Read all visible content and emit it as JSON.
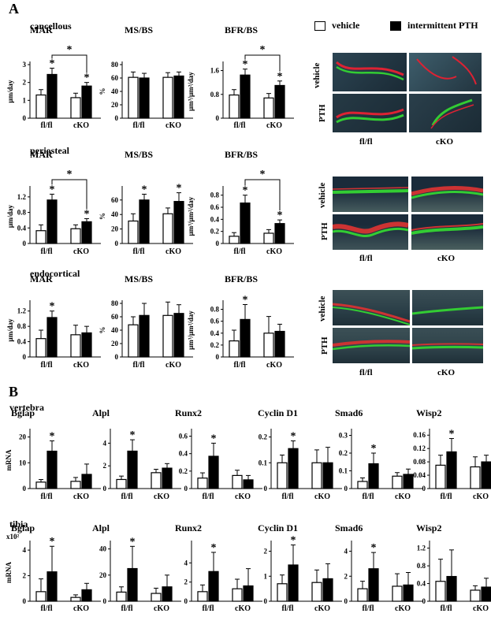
{
  "panel_a_label": "A",
  "panel_b_label": "B",
  "legend": {
    "vehicle": "vehicle",
    "pth": "intermittent PTH"
  },
  "regions": {
    "cancellous": "cancellous",
    "periosteal": "periosteal",
    "endocortical": "endocortical",
    "vertebra": "vertebra",
    "tibia": "tibia"
  },
  "micrographs": {
    "row_vehicle": "vehicle",
    "row_pth": "PTH",
    "col_flfl": "fl/fl",
    "col_cko": "cKO"
  },
  "colors": {
    "vehicle": "#ffffff",
    "pth": "#000000"
  },
  "chart_data": [
    {
      "type": "bar",
      "group": "cancellous",
      "title": "MAR",
      "ylabel": "μm/day",
      "ylim": [
        0,
        3
      ],
      "yticks": [
        0,
        1,
        2,
        3
      ],
      "categories": [
        "fl/fl",
        "cKO"
      ],
      "series": [
        {
          "name": "vehicle",
          "values": [
            1.3,
            1.15
          ],
          "err": [
            0.3,
            0.25
          ]
        },
        {
          "name": "intermittent PTH",
          "values": [
            2.45,
            1.8
          ],
          "err": [
            0.35,
            0.2
          ]
        }
      ],
      "stars": [
        1,
        3
      ],
      "bracket": [
        1,
        3
      ]
    },
    {
      "type": "bar",
      "group": "cancellous",
      "title": "MS/BS",
      "ylabel": "%",
      "ylim": [
        0,
        80
      ],
      "yticks": [
        0,
        20,
        40,
        60,
        80
      ],
      "categories": [
        "fl/fl",
        "cKO"
      ],
      "series": [
        {
          "name": "vehicle",
          "values": [
            61,
            61
          ],
          "err": [
            8,
            7
          ]
        },
        {
          "name": "intermittent PTH",
          "values": [
            60,
            63
          ],
          "err": [
            7,
            6
          ]
        }
      ],
      "stars": [],
      "bracket": null
    },
    {
      "type": "bar",
      "group": "cancellous",
      "title": "BFR/BS",
      "ylabel": "μm³/μm²/day",
      "ylim": [
        0,
        1.8
      ],
      "yticks": [
        0,
        0.8,
        1.6
      ],
      "categories": [
        "fl/fl",
        "cKO"
      ],
      "series": [
        {
          "name": "vehicle",
          "values": [
            0.78,
            0.68
          ],
          "err": [
            0.18,
            0.15
          ]
        },
        {
          "name": "intermittent PTH",
          "values": [
            1.45,
            1.1
          ],
          "err": [
            0.2,
            0.15
          ]
        }
      ],
      "stars": [
        1,
        3
      ],
      "bracket": [
        1,
        3
      ]
    },
    {
      "type": "bar",
      "group": "periosteal",
      "title": "MAR",
      "ylabel": "μm/day",
      "ylim": [
        0,
        1.4
      ],
      "yticks": [
        0,
        0.4,
        0.8,
        1.2
      ],
      "categories": [
        "fl/fl",
        "cKO"
      ],
      "series": [
        {
          "name": "vehicle",
          "values": [
            0.33,
            0.38
          ],
          "err": [
            0.15,
            0.1
          ]
        },
        {
          "name": "intermittent PTH",
          "values": [
            1.12,
            0.56
          ],
          "err": [
            0.15,
            0.08
          ]
        }
      ],
      "stars": [
        1,
        3
      ],
      "bracket": [
        1,
        3
      ]
    },
    {
      "type": "bar",
      "group": "periosteal",
      "title": "MS/BS",
      "ylabel": "%",
      "ylim": [
        0,
        75
      ],
      "yticks": [
        0,
        20,
        40,
        60
      ],
      "categories": [
        "fl/fl",
        "cKO"
      ],
      "series": [
        {
          "name": "vehicle",
          "values": [
            31,
            41
          ],
          "err": [
            10,
            8
          ]
        },
        {
          "name": "intermittent PTH",
          "values": [
            60,
            58
          ],
          "err": [
            8,
            12
          ]
        }
      ],
      "stars": [
        1,
        3
      ],
      "bracket": null
    },
    {
      "type": "bar",
      "group": "periosteal",
      "title": "BFR/BS",
      "ylabel": "μm³/μm²/day",
      "ylim": [
        0,
        0.9
      ],
      "yticks": [
        0,
        0.2,
        0.4,
        0.6,
        0.8
      ],
      "categories": [
        "fl/fl",
        "cKO"
      ],
      "series": [
        {
          "name": "vehicle",
          "values": [
            0.12,
            0.17
          ],
          "err": [
            0.06,
            0.06
          ]
        },
        {
          "name": "intermittent PTH",
          "values": [
            0.67,
            0.33
          ],
          "err": [
            0.13,
            0.06
          ]
        }
      ],
      "stars": [
        1,
        3
      ],
      "bracket": [
        1,
        3
      ]
    },
    {
      "type": "bar",
      "group": "endocortical",
      "title": "MAR",
      "ylabel": "μm/day",
      "ylim": [
        0,
        1.4
      ],
      "yticks": [
        0,
        0.4,
        0.8,
        1.2
      ],
      "categories": [
        "fl/fl",
        "cKO"
      ],
      "series": [
        {
          "name": "vehicle",
          "values": [
            0.48,
            0.58
          ],
          "err": [
            0.22,
            0.25
          ]
        },
        {
          "name": "intermittent PTH",
          "values": [
            1.03,
            0.63
          ],
          "err": [
            0.17,
            0.17
          ]
        }
      ],
      "stars": [
        1
      ],
      "bracket": null
    },
    {
      "type": "bar",
      "group": "endocortical",
      "title": "MS/BS",
      "ylabel": "%",
      "ylim": [
        0,
        80
      ],
      "yticks": [
        0,
        20,
        40,
        60,
        80
      ],
      "categories": [
        "fl/fl",
        "cKO"
      ],
      "series": [
        {
          "name": "vehicle",
          "values": [
            48,
            62
          ],
          "err": [
            12,
            20
          ]
        },
        {
          "name": "intermittent PTH",
          "values": [
            62,
            65
          ],
          "err": [
            18,
            13
          ]
        }
      ],
      "stars": [],
      "bracket": null
    },
    {
      "type": "bar",
      "group": "endocortical",
      "title": "BFR/BS",
      "ylabel": "μm³/μm²/day",
      "ylim": [
        0,
        0.9
      ],
      "yticks": [
        0,
        0.2,
        0.4,
        0.6,
        0.8
      ],
      "categories": [
        "fl/fl",
        "cKO"
      ],
      "series": [
        {
          "name": "vehicle",
          "values": [
            0.27,
            0.4
          ],
          "err": [
            0.18,
            0.28
          ]
        },
        {
          "name": "intermittent PTH",
          "values": [
            0.63,
            0.43
          ],
          "err": [
            0.25,
            0.12
          ]
        }
      ],
      "stars": [
        1
      ],
      "bracket": null
    },
    {
      "type": "bar",
      "group": "vertebra",
      "title": "Bglap",
      "ylabel": "mRNA",
      "ylim": [
        0,
        22
      ],
      "yticks": [
        0,
        10,
        20
      ],
      "categories": [
        "fl/fl",
        "cKO"
      ],
      "series": [
        {
          "name": "vehicle",
          "values": [
            2.5,
            2.8
          ],
          "err": [
            1,
            1.5
          ]
        },
        {
          "name": "intermittent PTH",
          "values": [
            14.5,
            5.5
          ],
          "err": [
            4,
            4
          ]
        }
      ],
      "stars": [
        1
      ],
      "bracket": null
    },
    {
      "type": "bar",
      "group": "vertebra",
      "title": "Alpl",
      "ylabel": "",
      "ylim": [
        0,
        5
      ],
      "yticks": [
        0,
        2,
        4
      ],
      "categories": [
        "fl/fl",
        "cKO"
      ],
      "series": [
        {
          "name": "vehicle",
          "values": [
            0.8,
            1.4
          ],
          "err": [
            0.3,
            0.3
          ]
        },
        {
          "name": "intermittent PTH",
          "values": [
            3.3,
            1.8
          ],
          "err": [
            1,
            0.4
          ]
        }
      ],
      "stars": [
        1
      ],
      "bracket": null
    },
    {
      "type": "bar",
      "group": "vertebra",
      "title": "Runx2",
      "ylabel": "",
      "ylim": [
        0,
        0.65
      ],
      "yticks": [
        0,
        0.2,
        0.4,
        0.6
      ],
      "categories": [
        "fl/fl",
        "cKO"
      ],
      "series": [
        {
          "name": "vehicle",
          "values": [
            0.12,
            0.15
          ],
          "err": [
            0.06,
            0.06
          ]
        },
        {
          "name": "intermittent PTH",
          "values": [
            0.37,
            0.1
          ],
          "err": [
            0.15,
            0.05
          ]
        }
      ],
      "stars": [
        1
      ],
      "bracket": null
    },
    {
      "type": "bar",
      "group": "vertebra",
      "title": "Cyclin D1",
      "ylabel": "",
      "ylim": [
        0,
        0.22
      ],
      "yticks": [
        0,
        0.1,
        0.2
      ],
      "categories": [
        "fl/fl",
        "cKO"
      ],
      "series": [
        {
          "name": "vehicle",
          "values": [
            0.1,
            0.1
          ],
          "err": [
            0.03,
            0.05
          ]
        },
        {
          "name": "intermittent PTH",
          "values": [
            0.155,
            0.1
          ],
          "err": [
            0.03,
            0.06
          ]
        }
      ],
      "stars": [
        1
      ],
      "bracket": null
    },
    {
      "type": "bar",
      "group": "vertebra",
      "title": "Smad6",
      "ylabel": "",
      "ylim": [
        0,
        0.32
      ],
      "yticks": [
        0,
        0.1,
        0.2,
        0.3
      ],
      "categories": [
        "fl/fl",
        "cKO"
      ],
      "series": [
        {
          "name": "vehicle",
          "values": [
            0.04,
            0.07
          ],
          "err": [
            0.02,
            0.02
          ]
        },
        {
          "name": "intermittent PTH",
          "values": [
            0.14,
            0.08
          ],
          "err": [
            0.06,
            0.03
          ]
        }
      ],
      "stars": [
        1
      ],
      "bracket": null
    },
    {
      "type": "bar",
      "group": "vertebra",
      "title": "Wisp2",
      "ylabel": "",
      "ylim": [
        0,
        0.17
      ],
      "yticks": [
        0,
        0.04,
        0.08,
        0.12,
        0.16
      ],
      "categories": [
        "fl/fl",
        "cKO"
      ],
      "series": [
        {
          "name": "vehicle",
          "values": [
            0.07,
            0.065
          ],
          "err": [
            0.03,
            0.03
          ]
        },
        {
          "name": "intermittent PTH",
          "values": [
            0.11,
            0.08
          ],
          "err": [
            0.04,
            0.02
          ]
        }
      ],
      "stars": [
        1
      ],
      "bracket": null
    },
    {
      "type": "bar",
      "group": "tibia",
      "title": "Bglap",
      "ylabel": "mRNA",
      "yunit": "x10²",
      "ylim": [
        0,
        4.5
      ],
      "yticks": [
        0,
        2,
        4
      ],
      "categories": [
        "fl/fl",
        "cKO"
      ],
      "series": [
        {
          "name": "vehicle",
          "values": [
            0.75,
            0.3
          ],
          "err": [
            1,
            0.2
          ]
        },
        {
          "name": "intermittent PTH",
          "values": [
            2.3,
            0.9
          ],
          "err": [
            2,
            0.5
          ]
        }
      ],
      "stars": [
        1
      ],
      "bracket": null
    },
    {
      "type": "bar",
      "group": "tibia",
      "title": "Alpl",
      "ylabel": "",
      "ylim": [
        0,
        44
      ],
      "yticks": [
        0,
        20,
        40
      ],
      "categories": [
        "fl/fl",
        "cKO"
      ],
      "series": [
        {
          "name": "vehicle",
          "values": [
            7,
            6
          ],
          "err": [
            4,
            4
          ]
        },
        {
          "name": "intermittent PTH",
          "values": [
            25,
            11
          ],
          "err": [
            17,
            9
          ]
        }
      ],
      "stars": [
        1
      ],
      "bracket": null
    },
    {
      "type": "bar",
      "group": "tibia",
      "title": "Runx2",
      "ylabel": "",
      "ylim": [
        0,
        6
      ],
      "yticks": [
        0,
        2,
        4
      ],
      "categories": [
        "fl/fl",
        "cKO"
      ],
      "series": [
        {
          "name": "vehicle",
          "values": [
            1,
            1.3
          ],
          "err": [
            0.7,
            1
          ]
        },
        {
          "name": "intermittent PTH",
          "values": [
            3.1,
            1.6
          ],
          "err": [
            2,
            1.8
          ]
        }
      ],
      "stars": [
        1
      ],
      "bracket": null
    },
    {
      "type": "bar",
      "group": "tibia",
      "title": "Cyclin D1",
      "ylabel": "",
      "ylim": [
        0,
        2.3
      ],
      "yticks": [
        0,
        1,
        2
      ],
      "categories": [
        "fl/fl",
        "cKO"
      ],
      "series": [
        {
          "name": "vehicle",
          "values": [
            0.7,
            0.75
          ],
          "err": [
            0.35,
            0.5
          ]
        },
        {
          "name": "intermittent PTH",
          "values": [
            1.45,
            0.9
          ],
          "err": [
            0.8,
            0.6
          ]
        }
      ],
      "stars": [
        1
      ],
      "bracket": null
    },
    {
      "type": "bar",
      "group": "tibia",
      "title": "Smad6",
      "ylabel": "",
      "ylim": [
        0,
        4.6
      ],
      "yticks": [
        0,
        2,
        4
      ],
      "categories": [
        "fl/fl",
        "cKO"
      ],
      "series": [
        {
          "name": "vehicle",
          "values": [
            1,
            1.2
          ],
          "err": [
            0.6,
            1
          ]
        },
        {
          "name": "intermittent PTH",
          "values": [
            2.6,
            1.3
          ],
          "err": [
            1.3,
            1
          ]
        }
      ],
      "stars": [
        1
      ],
      "bracket": null
    },
    {
      "type": "bar",
      "group": "tibia",
      "title": "Wisp2",
      "ylabel": "",
      "ylim": [
        0,
        1.3
      ],
      "yticks": [
        0,
        0.4,
        0.8,
        1.2
      ],
      "categories": [
        "fl/fl",
        "cKO"
      ],
      "series": [
        {
          "name": "vehicle",
          "values": [
            0.45,
            0.25
          ],
          "err": [
            0.5,
            0.1
          ]
        },
        {
          "name": "intermittent PTH",
          "values": [
            0.56,
            0.32
          ],
          "err": [
            0.6,
            0.2
          ]
        }
      ],
      "stars": [],
      "bracket": null
    }
  ]
}
